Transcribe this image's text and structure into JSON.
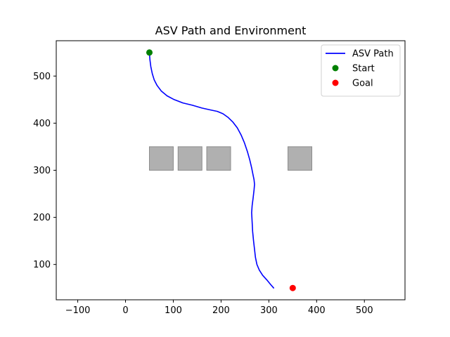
{
  "chart_data": {
    "type": "line",
    "title": "ASV Path and Environment",
    "xlabel": "",
    "ylabel": "",
    "xlim": [
      -145,
      585
    ],
    "ylim": [
      25,
      575
    ],
    "xticks": [
      -100,
      0,
      100,
      200,
      300,
      400,
      500
    ],
    "yticks": [
      100,
      200,
      300,
      400,
      500
    ],
    "grid": false,
    "legend_position": "top-right",
    "series": [
      {
        "name": "ASV Path",
        "kind": "line",
        "color": "#0000ff",
        "x": [
          50,
          51,
          53,
          56,
          60,
          66,
          75,
          87,
          102,
          120,
          140,
          160,
          178,
          192,
          204,
          215,
          225,
          234,
          242,
          249,
          255,
          260,
          264,
          267,
          269,
          270,
          269,
          267,
          265,
          264,
          265,
          266,
          268,
          270,
          272,
          275,
          280,
          287,
          296,
          304,
          310
        ],
        "y": [
          550,
          535,
          520,
          505,
          492,
          480,
          468,
          458,
          450,
          443,
          438,
          432,
          428,
          425,
          420,
          412,
          402,
          390,
          375,
          358,
          340,
          322,
          305,
          290,
          280,
          270,
          258,
          240,
          225,
          210,
          190,
          170,
          150,
          132,
          115,
          100,
          88,
          77,
          67,
          57,
          50
        ]
      },
      {
        "name": "Start",
        "kind": "scatter",
        "color": "#008000",
        "x": [
          50
        ],
        "y": [
          550
        ]
      },
      {
        "name": "Goal",
        "kind": "scatter",
        "color": "#ff0000",
        "x": [
          350
        ],
        "y": [
          50
        ]
      }
    ],
    "obstacles": {
      "color": "#b0b0b0",
      "edge_color": "#8c8c8c",
      "items": [
        {
          "x0": 50,
          "x1": 100,
          "y0": 300,
          "y1": 350
        },
        {
          "x0": 110,
          "x1": 160,
          "y0": 300,
          "y1": 350
        },
        {
          "x0": 170,
          "x1": 220,
          "y0": 300,
          "y1": 350
        },
        {
          "x0": 340,
          "x1": 390,
          "y0": 300,
          "y1": 350
        }
      ]
    }
  }
}
